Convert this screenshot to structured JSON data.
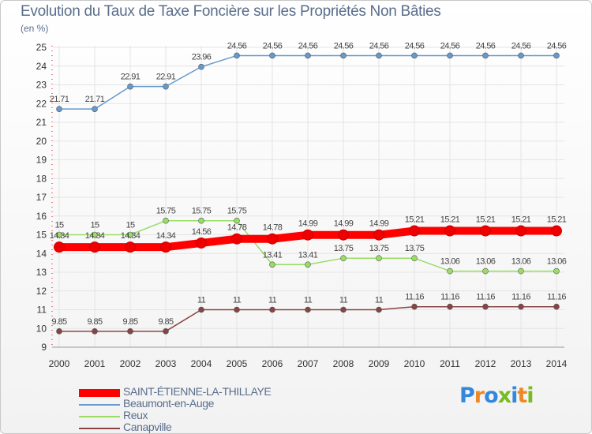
{
  "chart_data": {
    "type": "line",
    "title": "Evolution du Taux de Taxe Foncière sur les Propriétés Non Bâties",
    "ylabel": "(en %)",
    "xlabel": "",
    "ylim": [
      9,
      25
    ],
    "yticks": [
      9,
      10,
      11,
      12,
      13,
      14,
      15,
      16,
      17,
      18,
      19,
      20,
      21,
      22,
      23,
      24,
      25
    ],
    "categories": [
      "2000",
      "2001",
      "2002",
      "2003",
      "2004",
      "2005",
      "2006",
      "2007",
      "2008",
      "2009",
      "2010",
      "2011",
      "2012",
      "2013",
      "2014"
    ],
    "series": [
      {
        "name": "SAINT-ÉTIENNE-LA-THILLAYE",
        "color": "#ff0000",
        "values": [
          14.34,
          14.34,
          14.34,
          14.34,
          14.56,
          14.78,
          14.78,
          14.99,
          14.99,
          14.99,
          15.21,
          15.21,
          15.21,
          15.21,
          15.21
        ],
        "labels": [
          "14.34",
          "14.34",
          "14.34",
          "14.34",
          "14.56",
          "14.78",
          "14.78",
          "14.99",
          "14.99",
          "14.99",
          "15.21",
          "15.21",
          "15.21",
          "15.21",
          "15.21"
        ]
      },
      {
        "name": "Beaumont-en-Auge",
        "color": "#6699cc",
        "values": [
          21.71,
          21.71,
          22.91,
          22.91,
          23.96,
          24.56,
          24.56,
          24.56,
          24.56,
          24.56,
          24.56,
          24.56,
          24.56,
          24.56,
          24.56
        ],
        "labels": [
          "21.71",
          "21.71",
          "22.91",
          "22.91",
          "23.96",
          "24.56",
          "24.56",
          "24.56",
          "24.56",
          "24.56",
          "24.56",
          "24.56",
          "24.56",
          "24.56",
          "24.56"
        ]
      },
      {
        "name": "Reux",
        "color": "#99dd66",
        "values": [
          15,
          15,
          15,
          15.75,
          15.75,
          15.75,
          13.41,
          13.41,
          13.75,
          13.75,
          13.75,
          13.06,
          13.06,
          13.06,
          13.06
        ],
        "labels": [
          "15",
          "15",
          "15",
          "15.75",
          "15.75",
          "15.75",
          "13.41",
          "13.41",
          "13.75",
          "13.75",
          "13.75",
          "13.06",
          "13.06",
          "13.06",
          "13.06"
        ]
      },
      {
        "name": "Canapville",
        "color": "#884444",
        "values": [
          9.85,
          9.85,
          9.85,
          9.85,
          11,
          11,
          11,
          11,
          11,
          11,
          11.16,
          11.16,
          11.16,
          11.16,
          11.16
        ],
        "labels": [
          "9.85",
          "9.85",
          "9.85",
          "9.85",
          "11",
          "11",
          "11",
          "11",
          "11",
          "11",
          "11.16",
          "11.16",
          "11.16",
          "11.16",
          "11.16"
        ]
      }
    ]
  },
  "brand": {
    "text": "Proxiti",
    "letters": [
      "P",
      "r",
      "o",
      "x",
      "i",
      "t",
      "i"
    ],
    "colors": [
      "#3388dd",
      "#ee8822",
      "#3388dd",
      "#77bb22",
      "#3388dd",
      "#ee8822",
      "#77bb22"
    ]
  }
}
